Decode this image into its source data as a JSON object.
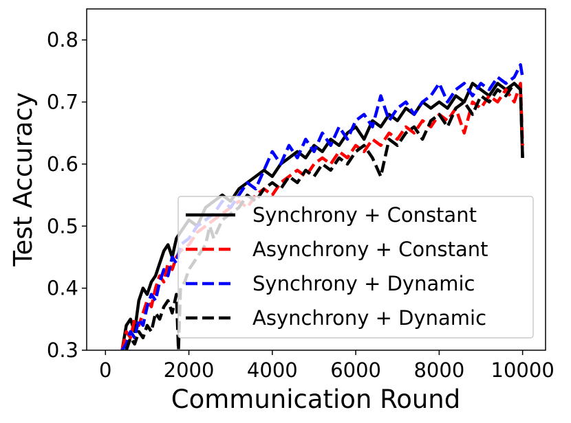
{
  "chart_data": {
    "type": "line",
    "title": "",
    "xlabel": "Communication Round",
    "ylabel": "Test Accuracy",
    "xlim": [
      -450,
      10550
    ],
    "ylim": [
      0.3,
      0.85
    ],
    "xticks": [
      0,
      2000,
      4000,
      6000,
      8000,
      10000
    ],
    "xtick_labels": [
      "0",
      "2000",
      "4000",
      "6000",
      "8000",
      "10000"
    ],
    "yticks": [
      0.3,
      0.4,
      0.5,
      0.6,
      0.7,
      0.8
    ],
    "ytick_labels": [
      "0.3",
      "0.4",
      "0.5",
      "0.6",
      "0.7",
      "0.8"
    ],
    "grid": false,
    "legend_position": "lower-right",
    "series": [
      {
        "name": "Synchrony + Constant",
        "color": "#000000",
        "style": "solid",
        "x": [
          400,
          500,
          600,
          700,
          800,
          900,
          1000,
          1100,
          1200,
          1300,
          1400,
          1500,
          1600,
          1700,
          1800,
          2000,
          2200,
          2400,
          2600,
          2800,
          3000,
          3200,
          3400,
          3600,
          3800,
          4000,
          4200,
          4400,
          4600,
          4800,
          5000,
          5200,
          5400,
          5600,
          5800,
          6000,
          6200,
          6400,
          6600,
          6800,
          7000,
          7200,
          7400,
          7600,
          7800,
          8000,
          8200,
          8400,
          8600,
          8800,
          9000,
          9200,
          9400,
          9600,
          9800,
          9950,
          10000
        ],
        "values": [
          0.3,
          0.34,
          0.35,
          0.33,
          0.38,
          0.4,
          0.39,
          0.41,
          0.42,
          0.44,
          0.46,
          0.47,
          0.45,
          0.48,
          0.49,
          0.51,
          0.5,
          0.53,
          0.54,
          0.55,
          0.54,
          0.56,
          0.57,
          0.58,
          0.59,
          0.58,
          0.6,
          0.61,
          0.62,
          0.61,
          0.63,
          0.62,
          0.64,
          0.63,
          0.65,
          0.66,
          0.64,
          0.67,
          0.66,
          0.68,
          0.67,
          0.69,
          0.68,
          0.7,
          0.69,
          0.7,
          0.69,
          0.71,
          0.7,
          0.73,
          0.72,
          0.71,
          0.73,
          0.72,
          0.73,
          0.72,
          0.61
        ]
      },
      {
        "name": "Asynchrony + Constant",
        "color": "#ff0000",
        "style": "dashed",
        "x": [
          400,
          500,
          600,
          700,
          800,
          900,
          1000,
          1100,
          1200,
          1300,
          1400,
          1500,
          1600,
          1700,
          1800,
          2000,
          2200,
          2400,
          2600,
          2800,
          3000,
          3200,
          3400,
          3600,
          3800,
          4000,
          4200,
          4400,
          4600,
          4800,
          5000,
          5200,
          5400,
          5600,
          5800,
          6000,
          6200,
          6400,
          6600,
          6800,
          7000,
          7200,
          7400,
          7600,
          7800,
          8000,
          8200,
          8400,
          8600,
          8800,
          9000,
          9200,
          9400,
          9600,
          9800,
          9950,
          10000
        ],
        "values": [
          0.3,
          0.33,
          0.32,
          0.35,
          0.34,
          0.36,
          0.38,
          0.37,
          0.4,
          0.42,
          0.41,
          0.44,
          0.43,
          0.45,
          0.46,
          0.47,
          0.49,
          0.5,
          0.51,
          0.52,
          0.53,
          0.54,
          0.53,
          0.55,
          0.56,
          0.55,
          0.57,
          0.58,
          0.59,
          0.58,
          0.6,
          0.61,
          0.6,
          0.62,
          0.61,
          0.63,
          0.62,
          0.64,
          0.63,
          0.65,
          0.64,
          0.66,
          0.65,
          0.67,
          0.66,
          0.68,
          0.67,
          0.69,
          0.65,
          0.7,
          0.69,
          0.71,
          0.7,
          0.72,
          0.7,
          0.73,
          0.63
        ]
      },
      {
        "name": "Synchrony + Dynamic",
        "color": "#0000ff",
        "style": "dashed",
        "x": [
          400,
          500,
          600,
          700,
          800,
          900,
          1000,
          1100,
          1200,
          1300,
          1400,
          1500,
          1600,
          1700,
          1800,
          2000,
          2200,
          2400,
          2600,
          2800,
          3000,
          3200,
          3400,
          3600,
          3800,
          4000,
          4200,
          4400,
          4600,
          4800,
          5000,
          5200,
          5400,
          5600,
          5800,
          6000,
          6200,
          6400,
          6600,
          6800,
          7000,
          7200,
          7400,
          7600,
          7800,
          8000,
          8200,
          8400,
          8600,
          8800,
          9000,
          9200,
          9400,
          9600,
          9800,
          9950,
          10000
        ],
        "values": [
          0.3,
          0.31,
          0.33,
          0.32,
          0.35,
          0.34,
          0.37,
          0.39,
          0.38,
          0.41,
          0.43,
          0.42,
          0.45,
          0.44,
          0.47,
          0.48,
          0.5,
          0.51,
          0.52,
          0.54,
          0.53,
          0.55,
          0.57,
          0.56,
          0.59,
          0.62,
          0.6,
          0.63,
          0.61,
          0.64,
          0.62,
          0.65,
          0.63,
          0.66,
          0.64,
          0.67,
          0.68,
          0.66,
          0.71,
          0.67,
          0.69,
          0.7,
          0.68,
          0.7,
          0.71,
          0.73,
          0.7,
          0.72,
          0.73,
          0.71,
          0.73,
          0.72,
          0.74,
          0.73,
          0.74,
          0.76,
          0.74
        ]
      },
      {
        "name": "Asynchrony + Dynamic",
        "color": "#000000",
        "style": "dashed",
        "x": [
          500,
          600,
          700,
          800,
          900,
          1000,
          1100,
          1200,
          1300,
          1400,
          1500,
          1600,
          1700,
          1750,
          1800,
          1900,
          2000,
          2200,
          2400,
          2500,
          2600,
          2800,
          3000,
          3200,
          3400,
          3600,
          3800,
          4000,
          4200,
          4400,
          4600,
          4800,
          5000,
          5200,
          5400,
          5600,
          5800,
          6000,
          6200,
          6400,
          6600,
          6800,
          7000,
          7200,
          7400,
          7600,
          7800,
          8000,
          8200,
          8400,
          8600,
          8800,
          9000,
          9200,
          9400,
          9600,
          9800,
          9950,
          10000
        ],
        "values": [
          0.3,
          0.32,
          0.31,
          0.33,
          0.32,
          0.34,
          0.33,
          0.36,
          0.35,
          0.37,
          0.38,
          0.36,
          0.39,
          0.3,
          0.4,
          0.41,
          0.43,
          0.45,
          0.47,
          0.5,
          0.48,
          0.51,
          0.52,
          0.53,
          0.55,
          0.54,
          0.56,
          0.57,
          0.56,
          0.58,
          0.57,
          0.59,
          0.58,
          0.6,
          0.59,
          0.61,
          0.6,
          0.62,
          0.63,
          0.61,
          0.58,
          0.64,
          0.63,
          0.65,
          0.66,
          0.64,
          0.67,
          0.68,
          0.66,
          0.69,
          0.7,
          0.68,
          0.71,
          0.7,
          0.72,
          0.71,
          0.73,
          0.72,
          0.61
        ]
      }
    ]
  }
}
